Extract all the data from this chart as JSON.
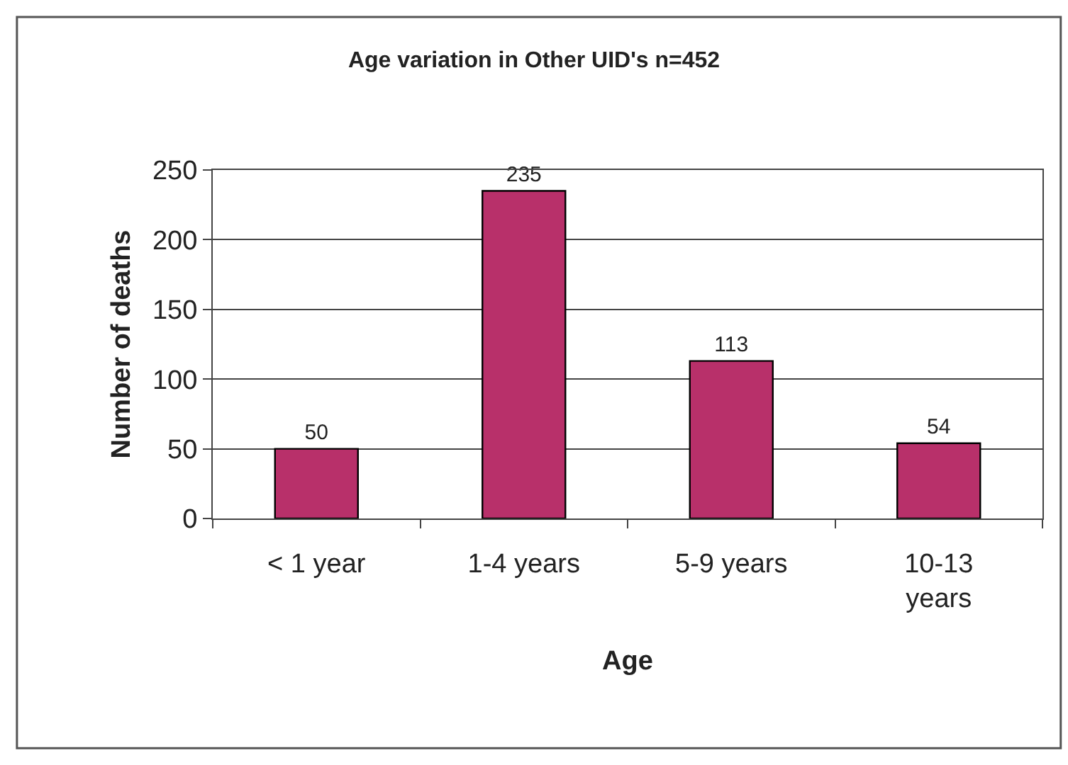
{
  "chart_data": {
    "type": "bar",
    "title": "Age variation in Other UID's n=452",
    "xlabel": "Age",
    "ylabel": "Number of deaths",
    "categories": [
      "< 1 year",
      "1-4 years",
      "5-9 years",
      "10-13 years"
    ],
    "values": [
      50,
      235,
      113,
      54
    ],
    "color": "#b8306a",
    "ylim": [
      0,
      250
    ],
    "yticks": [
      0,
      50,
      100,
      150,
      200,
      250
    ],
    "grid": "y",
    "data_labels": true
  }
}
